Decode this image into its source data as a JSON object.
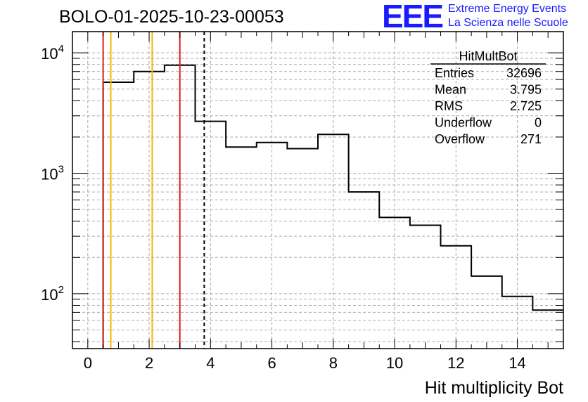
{
  "header": {
    "run_title": "BOLO-01-2025-10-23-00053",
    "logo_text": "EEE",
    "logo_line1": "Extreme Energy Events",
    "logo_line2": "La Scienza nelle Scuole"
  },
  "colors": {
    "logo": "#1a1aff",
    "histogram": "#000000",
    "red_lines": "#e31a1c",
    "orange_lines": "#f5b700",
    "grid": "#aaaaaa"
  },
  "stats_box": {
    "title": "HitMultBot",
    "rows": [
      {
        "label": "Entries",
        "value": "32696"
      },
      {
        "label": "Mean",
        "value": "3.795"
      },
      {
        "label": "RMS",
        "value": "2.725"
      },
      {
        "label": "Underflow",
        "value": "0"
      },
      {
        "label": "Overflow",
        "value": "271"
      }
    ]
  },
  "chart_data": {
    "type": "histogram",
    "title": "",
    "xlabel": "Hit multiplicity Bot",
    "ylabel": "",
    "xlim": [
      -0.5,
      15.5
    ],
    "ylim": [
      35,
      15000
    ],
    "y_scale": "log",
    "grid": true,
    "x_ticks": [
      0,
      2,
      4,
      6,
      8,
      10,
      12,
      14
    ],
    "x_tick_labels": [
      "0",
      "2",
      "4",
      "6",
      "8",
      "10",
      "12",
      "14"
    ],
    "y_major_ticks": [
      {
        "value": 100,
        "base": "10",
        "exponent": "2"
      },
      {
        "value": 1000,
        "base": "10",
        "exponent": "3"
      },
      {
        "value": 10000,
        "base": "10",
        "exponent": "4"
      }
    ],
    "bin_edges": [
      0.5,
      1.5,
      2.5,
      3.5,
      4.5,
      5.5,
      6.5,
      7.5,
      8.5,
      9.5,
      10.5,
      11.5,
      12.5,
      13.5,
      14.5,
      15.5
    ],
    "values": [
      5700,
      7000,
      7900,
      2700,
      1650,
      1800,
      1600,
      2100,
      700,
      430,
      370,
      250,
      140,
      95,
      73
    ],
    "vertical_lines": [
      {
        "x": 0.5,
        "color": "red",
        "style": "solid"
      },
      {
        "x": 3.0,
        "color": "red",
        "style": "solid"
      },
      {
        "x": 0.75,
        "color": "orange",
        "style": "solid"
      },
      {
        "x": 2.1,
        "color": "orange",
        "style": "solid"
      },
      {
        "x": 3.795,
        "color": "black",
        "style": "dashed"
      }
    ]
  }
}
